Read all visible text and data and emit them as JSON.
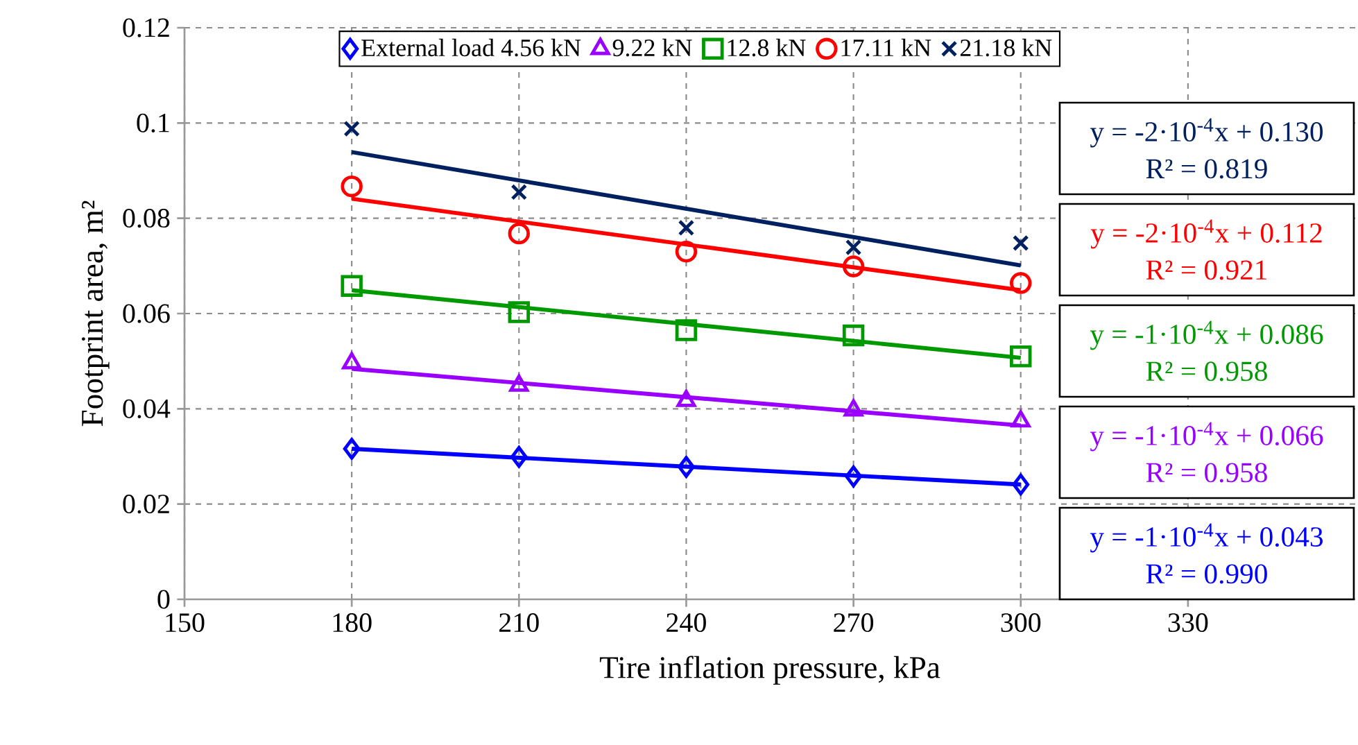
{
  "chart_data": {
    "type": "scatter",
    "xlabel": "Tire inflation pressure, kPa",
    "ylabel": "Footprint area, m²",
    "xlim": [
      150,
      360
    ],
    "xticks": [
      150,
      180,
      210,
      240,
      270,
      300,
      330
    ],
    "ylim": [
      0,
      0.12
    ],
    "yticks": [
      0,
      0.02,
      0.04,
      0.06,
      0.08,
      0.1,
      0.12
    ],
    "grid": true,
    "legend": "top",
    "series": [
      {
        "name": "External load 4.56 kN",
        "marker": "diamond",
        "color": "#0000ff",
        "x": [
          180,
          210,
          240,
          270,
          300
        ],
        "values": [
          0.0316,
          0.0299,
          0.0278,
          0.0258,
          0.0241
        ]
      },
      {
        "name": "9.22 kN",
        "marker": "triangle",
        "color": "#9900ff",
        "x": [
          180,
          210,
          240,
          270,
          300
        ],
        "values": [
          0.0496,
          0.0449,
          0.0417,
          0.0397,
          0.0374
        ]
      },
      {
        "name": "12.8 kN",
        "marker": "square",
        "color": "#009900",
        "x": [
          180,
          210,
          240,
          270,
          300
        ],
        "values": [
          0.0658,
          0.0603,
          0.0565,
          0.0554,
          0.051
        ]
      },
      {
        "name": "17.11 kN",
        "marker": "circle",
        "color": "#ff0000",
        "x": [
          180,
          210,
          240,
          270,
          300
        ],
        "values": [
          0.0867,
          0.0768,
          0.073,
          0.0699,
          0.0664
        ]
      },
      {
        "name": "21.18 kN",
        "marker": "cross",
        "color": "#002060",
        "x": [
          180,
          210,
          240,
          270,
          300
        ],
        "values": [
          0.0988,
          0.0855,
          0.078,
          0.0739,
          0.0748
        ]
      },
      {
        "type": "line",
        "color": "#0000ff",
        "x": [
          180,
          300
        ],
        "values": [
          0.0316,
          0.0241
        ]
      },
      {
        "type": "line",
        "color": "#9900ff",
        "x": [
          180,
          300
        ],
        "values": [
          0.0484,
          0.0365
        ]
      },
      {
        "type": "line",
        "color": "#009900",
        "x": [
          180,
          300
        ],
        "values": [
          0.0649,
          0.0507
        ]
      },
      {
        "type": "line",
        "color": "#ff0000",
        "x": [
          180,
          300
        ],
        "values": [
          0.0841,
          0.0649
        ]
      },
      {
        "type": "line",
        "color": "#002060",
        "x": [
          180,
          300
        ],
        "values": [
          0.0939,
          0.0701
        ]
      }
    ],
    "annotations": [
      "y = -2·10$^{-4}$x + 0.130",
      "R² = 0.819",
      "y = -2·10$^{-4}$x + 0.112",
      "R² = 0.921",
      "y = -1·10$^{-4}$x + 0.086",
      "R² = 0.958",
      "y = -1·10$^{-4}$x + 0.066",
      "R² = 0.958",
      "y = -1·10$^{-4}$x + 0.043",
      "R² = 0.990"
    ]
  }
}
